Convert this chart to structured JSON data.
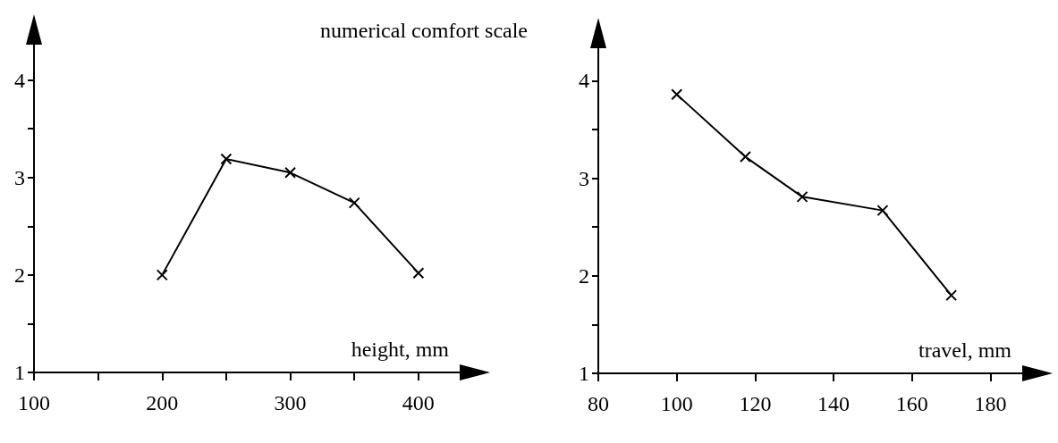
{
  "chart_data": [
    {
      "type": "line",
      "ylabel": "numerical comfort scale",
      "xlabel": "height, mm",
      "x": [
        200,
        250,
        300,
        350,
        400
      ],
      "series": [
        {
          "color": "#000000",
          "values": [
            2.0,
            3.19,
            3.05,
            2.74,
            2.02
          ]
        }
      ],
      "xlim": [
        100,
        435
      ],
      "xticks": [
        100,
        {
          "value": 150,
          "label": null
        },
        200,
        {
          "value": 250,
          "label": null
        },
        300,
        {
          "value": 350,
          "label": null
        },
        400
      ],
      "ylim": [
        1,
        4.4
      ],
      "yticks": [
        1,
        {
          "value": 1.5,
          "label": null
        },
        2,
        {
          "value": 2.5,
          "label": null
        },
        3,
        {
          "value": 3.5,
          "label": null
        },
        4
      ],
      "grid": false,
      "marker": "cross",
      "line_style": "solid"
    },
    {
      "type": "line",
      "xlabel": "travel, mm",
      "x": [
        100,
        117.5,
        132,
        152.5,
        170
      ],
      "series": [
        {
          "color": "#000000",
          "values": [
            3.86,
            3.22,
            2.81,
            2.67,
            1.8
          ]
        }
      ],
      "xlim": [
        80,
        189
      ],
      "xticks": [
        80,
        100,
        120,
        140,
        160,
        180
      ],
      "ylim": [
        1,
        4.37
      ],
      "yticks": [
        1,
        {
          "value": 1.5,
          "label": null
        },
        2,
        {
          "value": 2.5,
          "label": null
        },
        3,
        {
          "value": 3.5,
          "label": null
        },
        4
      ],
      "grid": false,
      "marker": "cross",
      "line_style": "solid"
    }
  ]
}
